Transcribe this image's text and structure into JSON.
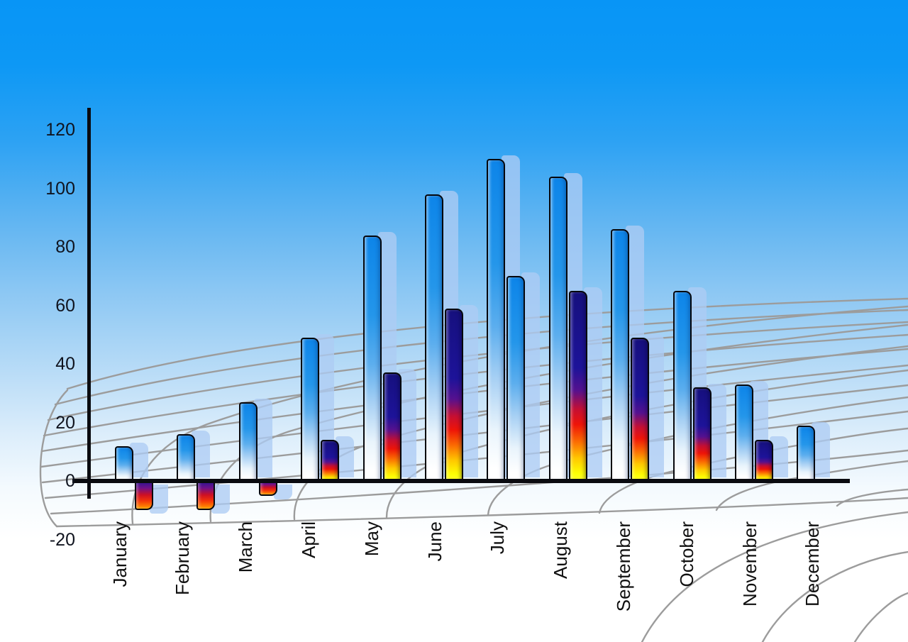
{
  "chart_data": {
    "type": "bar",
    "title": "",
    "categories": [
      "January",
      "February",
      "March",
      "April",
      "May",
      "June",
      "July",
      "August",
      "September",
      "October",
      "November",
      "December"
    ],
    "series": [
      {
        "name": "blue-gradient-bars",
        "values": [
          12,
          16,
          27,
          49,
          84,
          98,
          110,
          104,
          86,
          65,
          33,
          19
        ]
      },
      {
        "name": "warm-gradient-bars",
        "values": [
          -10,
          -10,
          -5,
          14,
          37,
          59,
          70,
          65,
          49,
          32,
          14,
          null
        ]
      }
    ],
    "second_bar_style": [
      "warm",
      "warm",
      "warm",
      "warm",
      "warm",
      "warm",
      "blue",
      "warm",
      "warm",
      "warm",
      "warm",
      null
    ],
    "y_axis": {
      "ticks": [
        120,
        100,
        80,
        60,
        40,
        20,
        0,
        -20
      ],
      "range": [
        -20,
        120
      ]
    },
    "x_axis": {
      "label_rotation_degrees": -90
    },
    "legend": "none",
    "grid": "curved-perspective-mesh",
    "colors": {
      "sky_top": "#0895f6",
      "sky_bottom": "#ffffff",
      "bar_blue_top": "#1488e8",
      "bar_blue_bottom": "#ffffff",
      "bar_shadow_blue": "#b4cff0",
      "warm_navy": "#1a1490",
      "warm_red": "#e01010",
      "warm_yellow": "#fdff04",
      "grid_line": "#9c9c9c",
      "axis_black": "#0a0b10",
      "label_text": "#101010"
    }
  }
}
